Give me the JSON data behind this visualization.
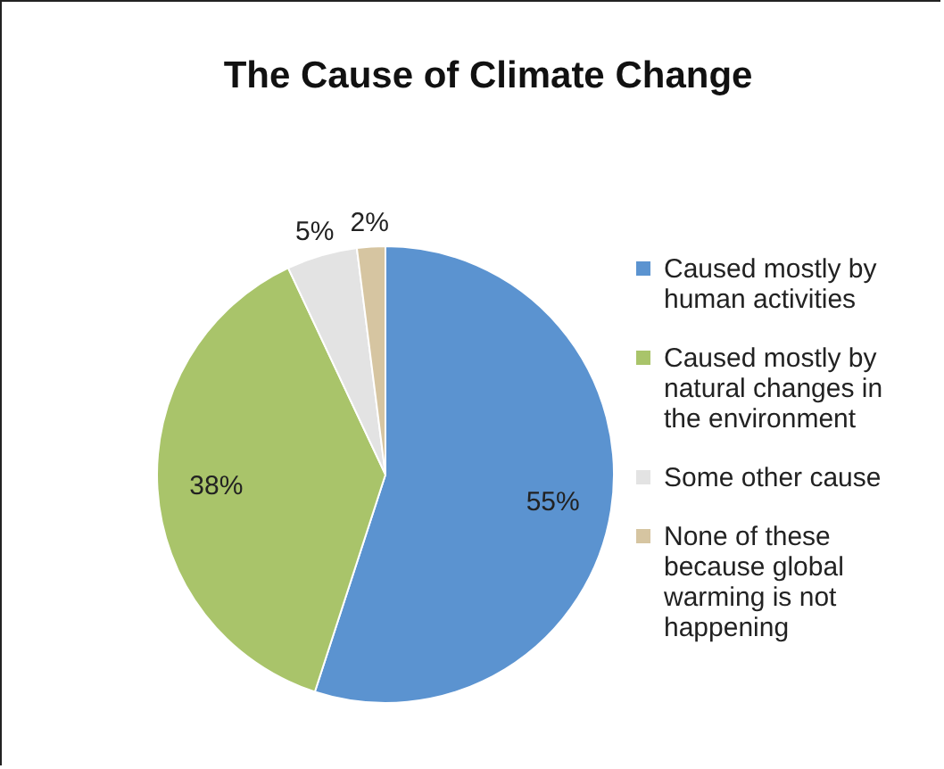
{
  "chart_data": {
    "type": "pie",
    "title": "The Cause of Climate Change",
    "categories": [
      "Caused mostly by human activities",
      "Caused mostly by natural changes in the environment",
      "Some other cause",
      "None of these because global warming is not happening"
    ],
    "values": [
      55,
      38,
      5,
      2
    ],
    "colors": [
      "#5b93d0",
      "#a9c46a",
      "#e3e3e3",
      "#d6c5a1"
    ],
    "value_labels": [
      "55%",
      "38%",
      "5%",
      "2%"
    ],
    "legend": "right"
  }
}
